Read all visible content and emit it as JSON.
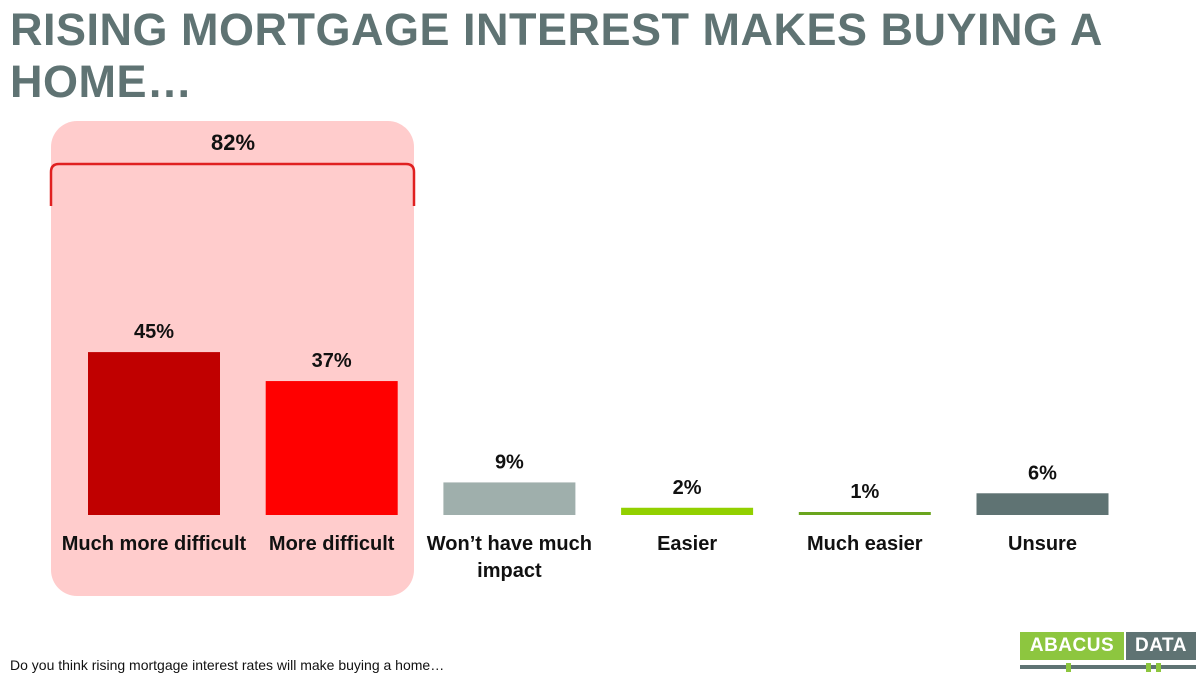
{
  "title": "RISING MORTGAGE INTEREST MAKES BUYING A HOME…",
  "footnote": "Do you think rising mortgage interest rates will make buying a home…",
  "logo": {
    "part1": "ABACUS",
    "part2": "DATA"
  },
  "colors": {
    "title": "#5f7373",
    "highlight_box": "#ffcccc",
    "bracket": "#e02020",
    "logo_green": "#8dc63f",
    "logo_gray": "#5f7373"
  },
  "chart_data": {
    "type": "bar",
    "title": "",
    "xlabel": "",
    "ylabel": "",
    "ylim": [
      0,
      50
    ],
    "grid": false,
    "categories": [
      "Much more difficult",
      "More difficult",
      "Won’t have much impact",
      "Easier",
      "Much easier",
      "Unsure"
    ],
    "values": [
      45,
      37,
      9,
      2,
      1,
      6
    ],
    "value_labels": [
      "45%",
      "37%",
      "9%",
      "2%",
      "1%",
      "6%"
    ],
    "bar_colors": [
      "#c00000",
      "#ff0000",
      "#9fafac",
      "#92d000",
      "#6aa51e",
      "#5f7373"
    ],
    "annotations": [
      {
        "text": "82%",
        "groups": [
          "Much more difficult",
          "More difficult"
        ],
        "value": 82
      }
    ]
  }
}
